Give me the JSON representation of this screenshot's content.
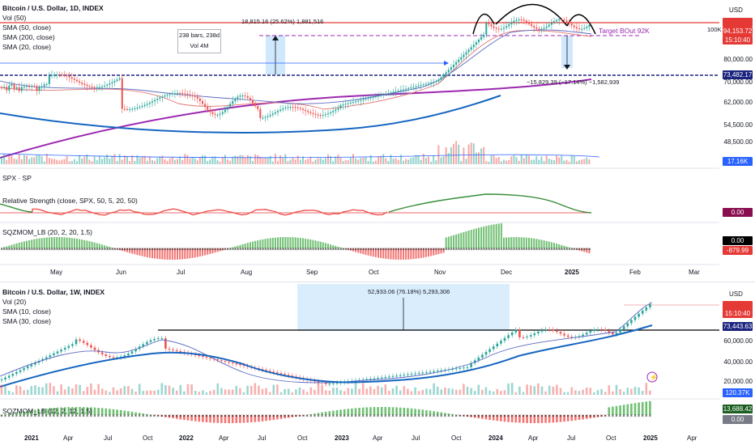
{
  "top_chart": {
    "title": "Bitcoin / U.S. Dollar, 1D, INDEX",
    "indicators": [
      "Vol (50)",
      "SMA (50, close)",
      "SMA (200, close)",
      "SMA (20, close)"
    ],
    "price_ticks": [
      "80,000.00",
      "70,000.00",
      "62,000.00",
      "54,500.00",
      "48,500.00"
    ],
    "currency": "USD",
    "tags": {
      "last_price": "94,153.72",
      "countdown": "15:10:40",
      "support": "73,482.17",
      "volume": "17.16K",
      "rs_value": "0.00",
      "sqz_value": "0.00",
      "sqz_value2": "-879.99"
    },
    "target_label": "Target BOut 92K",
    "label_100k": "100K",
    "measure_up": "18,815.16 (25.62%) 1,881,516",
    "bars_box": {
      "line1": "238 bars, 238d",
      "line2": "Vol 4M"
    },
    "measure_down": "−15,829.39 (−17.14%) −1,582,939",
    "spx_label": "SPX · SP",
    "rs_label": "Relative Strength (close, SPX, 50, 5, 20, 50)",
    "sqz_label": "SQZMOM_LB (20, 2, 20, 1.5)",
    "time_labels": [
      "May",
      "Jun",
      "Jul",
      "Aug",
      "Sep",
      "Oct",
      "Nov",
      "Dec",
      "2025",
      "Feb",
      "Mar"
    ]
  },
  "bottom_chart": {
    "title": "Bitcoin / U.S. Dollar, 1W, INDEX",
    "indicators": [
      "Vol (20)",
      "SMA (10, close)",
      "SMA (30, close)"
    ],
    "price_ticks": [
      "60,000.00",
      "40,000.00",
      "20,000.00"
    ],
    "currency": "USD",
    "tags": {
      "countdown": "15:10:40",
      "support": "73,443.63",
      "volume": "120.37K",
      "sqz_value": "13,688.42",
      "sqz_value2": "0.00"
    },
    "measure_label": "52,933.06 (76.18%) 5,293,306",
    "sqz_label": "SQZMOM_LB (12, 2, 12, 1.5)",
    "time_labels": [
      "2021",
      "Apr",
      "Jul",
      "Oct",
      "2022",
      "Apr",
      "Jul",
      "Oct",
      "2023",
      "Apr",
      "Jul",
      "Oct",
      "2024",
      "Apr",
      "Jul",
      "Oct",
      "2025",
      "Apr"
    ]
  },
  "colors": {
    "up": "#26a69a",
    "down": "#ef5350",
    "sma50": "#9c27b0",
    "sma200": "#1565c0",
    "resistance": "#e53935",
    "target": "#9c27b0",
    "support": "#1a237e"
  }
}
